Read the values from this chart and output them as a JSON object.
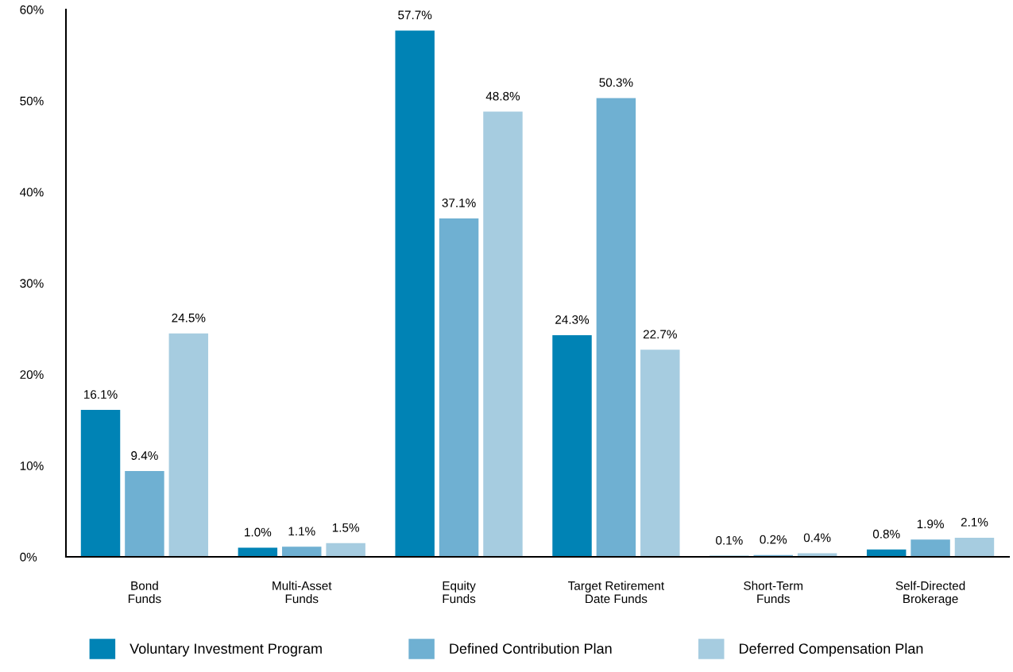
{
  "chart_data": {
    "type": "bar",
    "categories": [
      "Bond\nFunds",
      "Multi-Asset\nFunds",
      "Equity\nFunds",
      "Target Retirement\nDate Funds",
      "Short-Term\nFunds",
      "Self-Directed\nBrokerage"
    ],
    "series": [
      {
        "name": "Voluntary Investment Program",
        "color": "#0083b5",
        "values": [
          16.1,
          1.0,
          57.7,
          24.3,
          0.1,
          0.8
        ],
        "value_labels": [
          "16.1%",
          "1.0%",
          "57.7%",
          "24.3%",
          "0.1%",
          "0.8%"
        ]
      },
      {
        "name": "Defined Contribution Plan",
        "color": "#6fb0d2",
        "values": [
          9.4,
          1.1,
          37.1,
          50.3,
          0.2,
          1.9
        ],
        "value_labels": [
          "9.4%",
          "1.1%",
          "37.1%",
          "50.3%",
          "0.2%",
          "1.9%"
        ]
      },
      {
        "name": "Deferred Compensation Plan",
        "color": "#a6cce0",
        "values": [
          24.5,
          1.5,
          48.8,
          22.7,
          0.4,
          2.1
        ],
        "value_labels": [
          "24.5%",
          "1.5%",
          "48.8%",
          "22.7%",
          "0.4%",
          "2.1%"
        ]
      }
    ],
    "ylim": [
      0,
      60
    ],
    "yticks": [
      {
        "value": 0,
        "label": "0%"
      },
      {
        "value": 10,
        "label": "10%"
      },
      {
        "value": 20,
        "label": "20%"
      },
      {
        "value": 30,
        "label": "30%"
      },
      {
        "value": 40,
        "label": "40%"
      },
      {
        "value": 50,
        "label": "50%"
      },
      {
        "value": 60,
        "label": "60%"
      }
    ],
    "grid": false,
    "legend": "bottom"
  }
}
